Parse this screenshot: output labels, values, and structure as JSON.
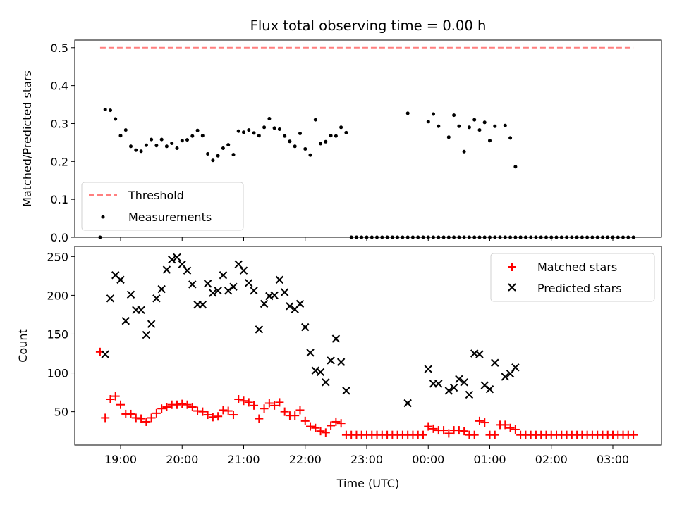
{
  "chart_data": [
    {
      "type": "scatter",
      "title": "Flux total observing time = 0.00 h",
      "xlabel": "",
      "ylabel": "Matched/Predicted stars",
      "ylim": [
        0,
        0.52
      ],
      "yticks": [
        "0.0",
        "0.1",
        "0.2",
        "0.3",
        "0.4",
        "0.5"
      ],
      "grid": false,
      "legend": "lower-left",
      "threshold": {
        "name": "Threshold",
        "y": 0.5,
        "x": [
          "18:40",
          "03:20"
        ],
        "color": "#ff7f7f",
        "style": "dashed"
      },
      "series": [
        {
          "name": "Measurements",
          "marker": "dot",
          "color": "#000000",
          "x": [
            "18:40",
            "18:45",
            "18:50",
            "18:55",
            "19:00",
            "19:05",
            "19:10",
            "19:15",
            "19:20",
            "19:25",
            "19:30",
            "19:35",
            "19:40",
            "19:45",
            "19:50",
            "19:55",
            "20:00",
            "20:05",
            "20:10",
            "20:15",
            "20:20",
            "20:25",
            "20:30",
            "20:35",
            "20:40",
            "20:45",
            "20:50",
            "20:55",
            "21:00",
            "21:05",
            "21:10",
            "21:15",
            "21:20",
            "21:25",
            "21:30",
            "21:35",
            "21:40",
            "21:45",
            "21:50",
            "21:55",
            "22:00",
            "22:05",
            "22:10",
            "22:15",
            "22:20",
            "22:25",
            "22:30",
            "22:35",
            "22:40",
            "22:45",
            "22:50",
            "22:55",
            "23:00",
            "23:05",
            "23:10",
            "23:15",
            "23:20",
            "23:25",
            "23:30",
            "23:35",
            "23:40",
            "23:45",
            "23:50",
            "23:55",
            "00:00",
            "00:05",
            "00:10",
            "00:15",
            "00:20",
            "00:25",
            "00:30",
            "00:35",
            "00:40",
            "00:45",
            "00:50",
            "00:55",
            "01:00",
            "01:05",
            "01:10",
            "01:15",
            "01:20",
            "01:25",
            "01:30",
            "01:35",
            "01:40",
            "01:45",
            "01:50",
            "01:55",
            "02:00",
            "02:05",
            "02:10",
            "02:15",
            "02:20",
            "02:25",
            "02:30",
            "02:35",
            "02:40",
            "02:45",
            "02:50",
            "02:55",
            "03:00",
            "03:05",
            "03:10",
            "03:15",
            "03:20"
          ],
          "y": [
            0.0,
            0.337,
            0.335,
            0.312,
            0.268,
            0.283,
            0.24,
            0.23,
            0.227,
            0.243,
            0.258,
            0.242,
            0.258,
            0.24,
            0.248,
            0.235,
            0.255,
            0.257,
            0.267,
            0.282,
            0.268,
            0.22,
            0.203,
            0.215,
            0.235,
            0.244,
            0.218,
            0.28,
            0.277,
            0.283,
            0.275,
            0.268,
            0.29,
            0.313,
            0.288,
            0.285,
            0.267,
            0.253,
            0.24,
            0.274,
            0.233,
            0.217,
            0.31,
            0.247,
            0.252,
            0.268,
            0.267,
            0.29,
            0.276,
            0.0,
            0.0,
            0.0,
            0.0,
            0.0,
            0.0,
            0.0,
            0.0,
            0.0,
            0.0,
            0.0,
            0.0,
            0.0,
            0.0,
            0.0,
            0.0,
            0.0,
            0.0,
            0.0,
            0.0,
            0.0,
            0.0,
            0.0,
            0.0,
            0.0,
            0.0,
            0.0,
            0.0,
            0.0,
            0.0,
            0.0,
            0.0,
            0.0,
            0.0,
            0.0,
            0.0,
            0.0,
            0.0,
            0.0,
            0.0,
            0.0,
            0.0,
            0.0,
            0.0,
            0.0,
            0.0,
            0.0,
            0.0,
            0.0,
            0.0,
            0.0,
            0.0,
            0.0,
            0.0,
            0.0,
            0.0
          ]
        },
        {
          "name": "",
          "marker": "dot",
          "color": "#000000",
          "x": [
            "23:40",
            "00:00",
            "00:05",
            "00:10",
            "00:20",
            "00:25",
            "00:30",
            "00:35",
            "00:40",
            "00:45",
            "00:50",
            "00:55",
            "01:00",
            "01:05",
            "01:10",
            "01:15",
            "01:20",
            "01:25",
            "01:30"
          ],
          "y": [
            0.327,
            0.305,
            0.325,
            0.293,
            0.264,
            0.322,
            0.293,
            0.226,
            0.29,
            0.31,
            0.283,
            0.303,
            0.255,
            0.293,
            0.0,
            0.295,
            0.262,
            0.186,
            0.0
          ]
        }
      ]
    },
    {
      "type": "scatter",
      "title": "",
      "xlabel": "Time (UTC)",
      "ylabel": "Count",
      "ylim": [
        7,
        263
      ],
      "yticks": [
        "50",
        "100",
        "150",
        "200",
        "250"
      ],
      "xticks": [
        "19:00",
        "20:00",
        "21:00",
        "22:00",
        "23:00",
        "00:00",
        "01:00",
        "02:00",
        "03:00"
      ],
      "grid": false,
      "legend": "top-right",
      "series": [
        {
          "name": "Matched stars",
          "marker": "plus",
          "color": "#ff0000",
          "x": [
            "18:40",
            "18:45",
            "18:50",
            "18:55",
            "19:00",
            "19:05",
            "19:10",
            "19:15",
            "19:20",
            "19:25",
            "19:30",
            "19:35",
            "19:40",
            "19:45",
            "19:50",
            "19:55",
            "20:00",
            "20:05",
            "20:10",
            "20:15",
            "20:20",
            "20:25",
            "20:30",
            "20:35",
            "20:40",
            "20:45",
            "20:50",
            "20:55",
            "21:00",
            "21:05",
            "21:10",
            "21:15",
            "21:20",
            "21:25",
            "21:30",
            "21:35",
            "21:40",
            "21:45",
            "21:50",
            "21:55",
            "22:00",
            "22:05",
            "22:10",
            "22:15",
            "22:20",
            "22:25",
            "22:30",
            "22:35",
            "22:40",
            "22:45",
            "22:50",
            "22:55",
            "23:00",
            "23:05",
            "23:10",
            "23:15",
            "23:20",
            "23:25",
            "23:30",
            "23:35",
            "23:40",
            "23:45",
            "23:50",
            "23:55",
            "00:00",
            "00:05",
            "00:10",
            "00:15",
            "00:20",
            "00:25",
            "00:30",
            "00:35",
            "00:40",
            "00:45",
            "00:50",
            "00:55",
            "01:00",
            "01:05",
            "01:10",
            "01:15",
            "01:20",
            "01:25",
            "01:30",
            "01:35",
            "01:40",
            "01:45",
            "01:50",
            "01:55",
            "02:00",
            "02:05",
            "02:10",
            "02:15",
            "02:20",
            "02:25",
            "02:30",
            "02:35",
            "02:40",
            "02:45",
            "02:50",
            "02:55",
            "03:00",
            "03:05",
            "03:10",
            "03:15",
            "03:20"
          ],
          "y": [
            127,
            42,
            66,
            70,
            59,
            47,
            47,
            42,
            41,
            37,
            42,
            48,
            54,
            56,
            59,
            59,
            60,
            59,
            56,
            51,
            50,
            46,
            43,
            44,
            52,
            51,
            46,
            66,
            64,
            62,
            58,
            41,
            54,
            61,
            58,
            62,
            50,
            45,
            45,
            52,
            38,
            31,
            29,
            25,
            23,
            32,
            37,
            35,
            20,
            20,
            20,
            20,
            20,
            20,
            20,
            20,
            20,
            20,
            20,
            20,
            20,
            20,
            20,
            20,
            31,
            28,
            26,
            26,
            22,
            26,
            26,
            25,
            20,
            20,
            38,
            36,
            20,
            20,
            33,
            33,
            29,
            27,
            20,
            20,
            20,
            20,
            20,
            20,
            20,
            20,
            20,
            20,
            20,
            20,
            20,
            20,
            20,
            20,
            20,
            20,
            20,
            20,
            20,
            20,
            20
          ]
        },
        {
          "name": "Predicted stars",
          "marker": "x",
          "color": "#000000",
          "x": [
            "18:45",
            "18:50",
            "18:55",
            "19:00",
            "19:05",
            "19:10",
            "19:15",
            "19:20",
            "19:25",
            "19:30",
            "19:35",
            "19:40",
            "19:45",
            "19:50",
            "19:55",
            "20:00",
            "20:05",
            "20:10",
            "20:15",
            "20:20",
            "20:25",
            "20:30",
            "20:35",
            "20:40",
            "20:45",
            "20:50",
            "20:55",
            "21:00",
            "21:05",
            "21:10",
            "21:15",
            "21:20",
            "21:25",
            "21:30",
            "21:35",
            "21:40",
            "21:45",
            "21:50",
            "21:55",
            "22:00",
            "22:05",
            "22:10",
            "22:15",
            "22:20",
            "22:25",
            "22:30",
            "22:35",
            "22:40",
            "23:40",
            "00:00",
            "00:05",
            "00:10",
            "00:20",
            "00:25",
            "00:30",
            "00:35",
            "00:40",
            "00:45",
            "00:50",
            "00:55",
            "01:00",
            "01:05",
            "01:15",
            "01:20",
            "01:25"
          ],
          "y": [
            124,
            196,
            226,
            220,
            167,
            201,
            181,
            181,
            149,
            163,
            196,
            208,
            233,
            246,
            249,
            240,
            232,
            214,
            188,
            188,
            215,
            203,
            206,
            226,
            206,
            211,
            240,
            232,
            216,
            206,
            156,
            189,
            199,
            200,
            220,
            204,
            186,
            182,
            189,
            159,
            126,
            103,
            101,
            88,
            116,
            144,
            114,
            77,
            61,
            105,
            86,
            86,
            77,
            81,
            92,
            88,
            72,
            125,
            124,
            84,
            79,
            113,
            95,
            99,
            107
          ]
        }
      ]
    }
  ]
}
